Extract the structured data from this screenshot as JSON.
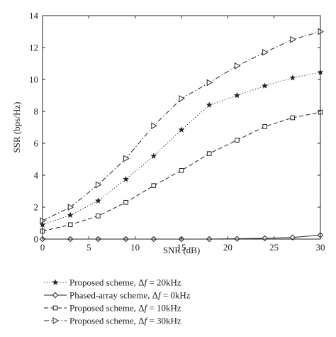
{
  "chart_data": {
    "type": "line",
    "xlabel": "SNR (dB)",
    "ylabel": "SSR (bps/Hz)",
    "xlim": [
      0,
      30
    ],
    "ylim": [
      0,
      14
    ],
    "xticks": [
      0,
      5,
      10,
      15,
      20,
      25,
      30
    ],
    "yticks": [
      0,
      2,
      4,
      6,
      8,
      10,
      12,
      14
    ],
    "grid": false,
    "legend_position": "bottom-outside",
    "x": [
      0,
      3,
      6,
      9,
      12,
      15,
      18,
      21,
      24,
      27,
      30
    ],
    "series": [
      {
        "name": "Proposed scheme, Δf = 20kHz",
        "name_parts": [
          "Proposed scheme, ",
          "Δ",
          "f",
          " = 20kHz"
        ],
        "marker": "star",
        "dash": "dotted",
        "values": [
          0.9,
          1.5,
          2.4,
          3.75,
          5.2,
          6.85,
          8.4,
          9.0,
          9.6,
          10.1,
          10.45
        ]
      },
      {
        "name": "Phased-array scheme, Δf = 0kHz",
        "name_parts": [
          "Phased-array scheme, ",
          "Δ",
          "f",
          " = 0kHz"
        ],
        "marker": "diamond",
        "dash": "solid",
        "values": [
          0.0,
          0.0,
          0.0,
          0.0,
          0.0,
          0.0,
          0.0,
          0.02,
          0.05,
          0.1,
          0.25
        ]
      },
      {
        "name": "Proposed scheme, Δf = 10kHz",
        "name_parts": [
          "Proposed scheme, ",
          "Δ",
          "f",
          " = 10kHz"
        ],
        "marker": "square",
        "dash": "dashed",
        "values": [
          0.5,
          0.9,
          1.45,
          2.3,
          3.35,
          4.3,
          5.35,
          6.2,
          7.05,
          7.6,
          7.95
        ]
      },
      {
        "name": "Proposed scheme, Δf = 30kHz",
        "name_parts": [
          "Proposed scheme, ",
          "Δ",
          "f",
          " = 30kHz"
        ],
        "marker": "triangle-right",
        "dash": "dashdot",
        "values": [
          1.15,
          2.0,
          3.4,
          5.05,
          7.1,
          8.8,
          9.8,
          10.85,
          11.7,
          12.5,
          13.0
        ]
      }
    ]
  }
}
